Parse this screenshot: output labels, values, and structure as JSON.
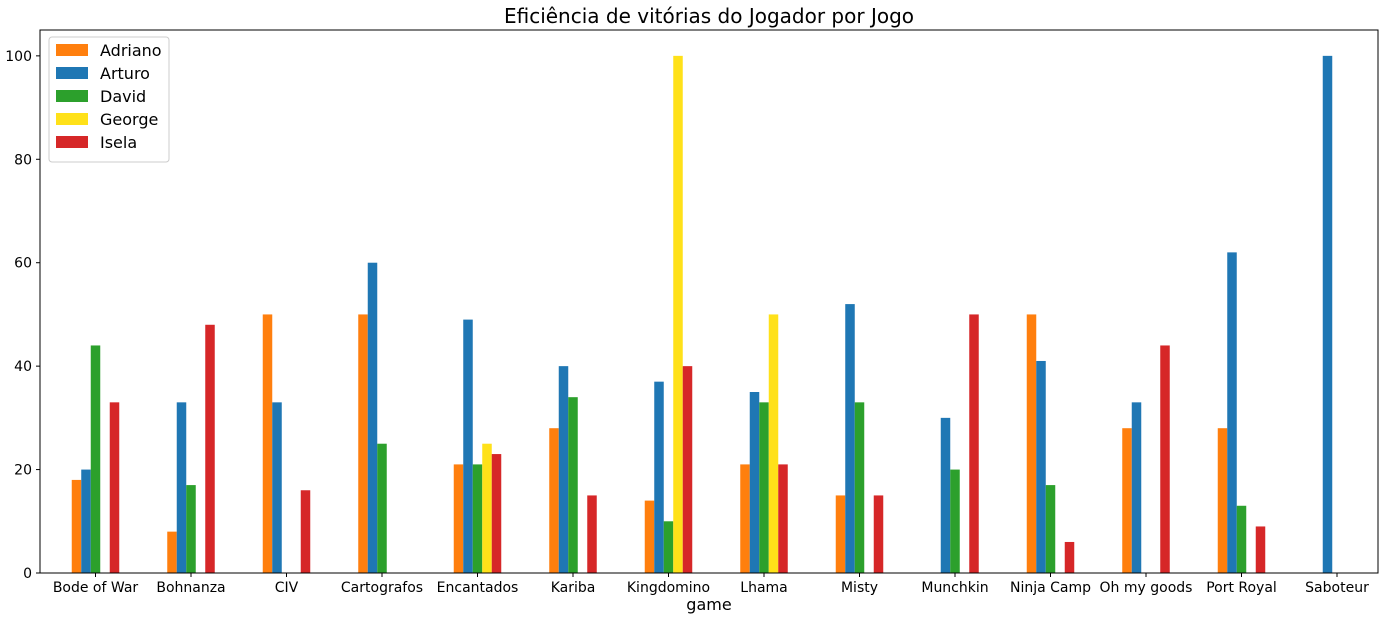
{
  "chart_data": {
    "type": "bar",
    "title": "Eficiência de vitórias do Jogador por Jogo",
    "xlabel": "game",
    "ylabel": "",
    "ylim": [
      0,
      105
    ],
    "yticks": [
      0,
      20,
      40,
      60,
      80,
      100
    ],
    "grid": false,
    "legend_position": "top-left",
    "categories": [
      "Bode of War",
      "Bohnanza",
      "CIV",
      "Cartografos",
      "Encantados",
      "Kariba",
      "Kingdomino",
      "Lhama",
      "Misty",
      "Munchkin",
      "Ninja Camp",
      "Oh my goods",
      "Port Royal",
      "Saboteur"
    ],
    "series": [
      {
        "name": "Adriano",
        "color": "#ff7f0e",
        "values": [
          18,
          8,
          50,
          50,
          21,
          28,
          14,
          21,
          15,
          0,
          50,
          28,
          28,
          0
        ]
      },
      {
        "name": "Arturo",
        "color": "#1f77b4",
        "values": [
          20,
          33,
          33,
          60,
          49,
          40,
          37,
          35,
          52,
          30,
          41,
          33,
          62,
          100
        ]
      },
      {
        "name": "David",
        "color": "#2ca02c",
        "values": [
          44,
          17,
          0,
          25,
          21,
          34,
          10,
          33,
          33,
          20,
          17,
          0,
          13,
          0
        ]
      },
      {
        "name": "George",
        "color": "#ffe119",
        "values": [
          0,
          0,
          0,
          0,
          25,
          0,
          100,
          50,
          0,
          0,
          0,
          0,
          0,
          0
        ]
      },
      {
        "name": "Isela",
        "color": "#d62728",
        "values": [
          33,
          48,
          16,
          0,
          23,
          15,
          40,
          21,
          15,
          50,
          6,
          44,
          9,
          0
        ]
      }
    ]
  }
}
